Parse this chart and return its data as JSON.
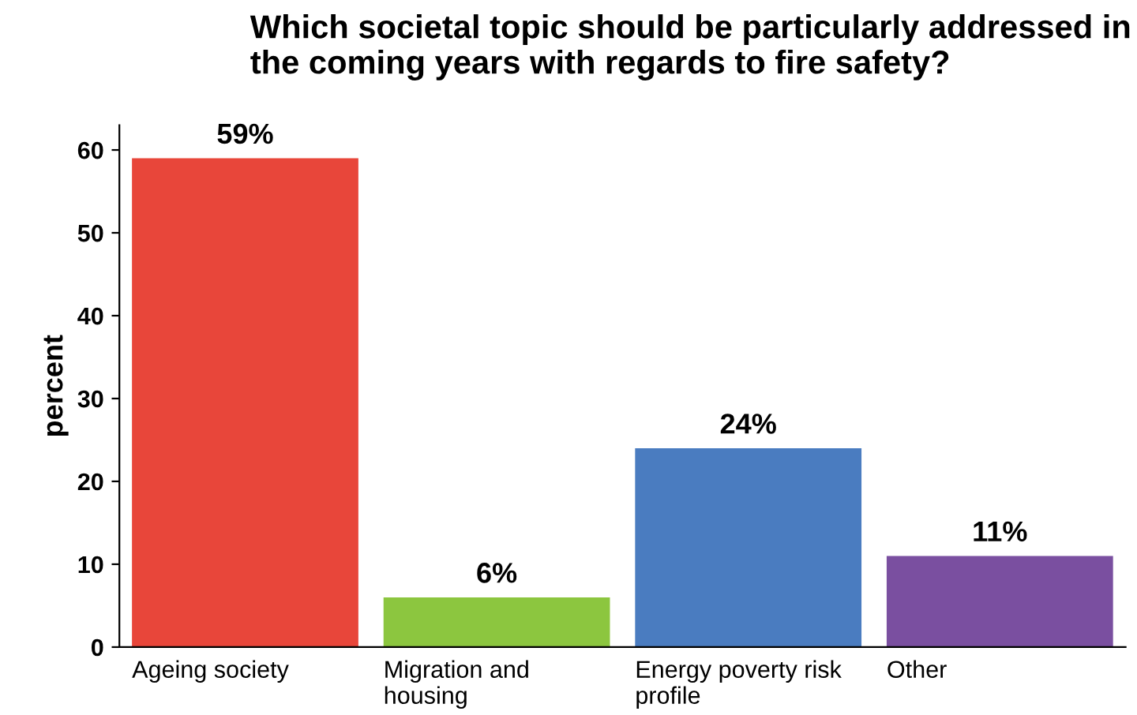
{
  "chart_data": {
    "type": "bar",
    "title": "Which societal topic should be particularly addressed in the coming years with regards to fire safety?",
    "ylabel": "percent",
    "categories": [
      "Ageing society",
      "Migration and\nhousing",
      "Energy poverty risk\nprofile",
      "Other"
    ],
    "values": [
      59,
      6,
      24,
      11
    ],
    "colors": [
      "#e8463a",
      "#8cc63f",
      "#4a7cc0",
      "#7a4fa0"
    ],
    "value_labels": [
      "59%",
      "6%",
      "24%",
      "11%"
    ],
    "ylim": [
      0,
      63
    ],
    "yticks": [
      0,
      10,
      20,
      30,
      40,
      50,
      60
    ],
    "grid": false,
    "legend": false
  }
}
